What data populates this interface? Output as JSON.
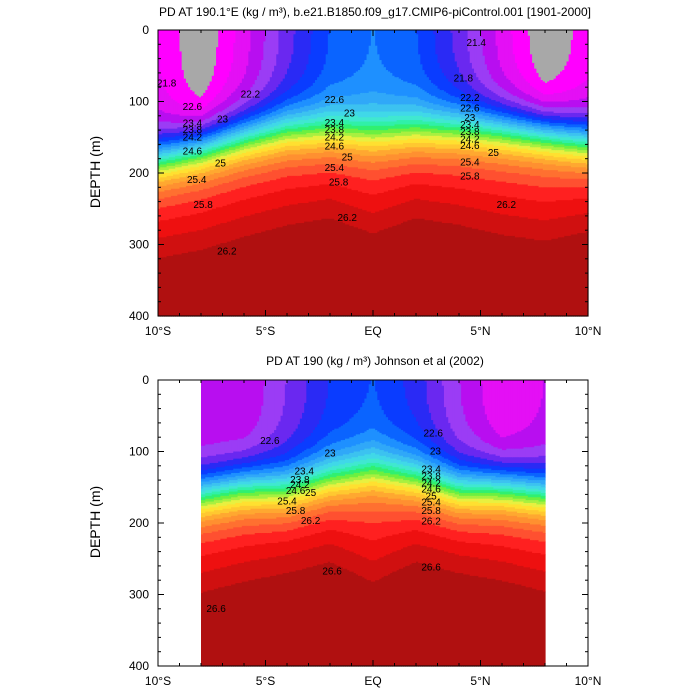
{
  "chart_data": [
    {
      "type": "contour",
      "title": "PD AT 190.1°E (kg / m³), b.e21.B1850.f09_g17.CMIP6-piControl.001 [1901-2000]",
      "ylabel": "DEPTH (m)",
      "xlim": [
        -10,
        10
      ],
      "ylim": [
        400,
        0
      ],
      "data_xlim": [
        -10,
        10
      ],
      "xticks": [
        -10,
        -5,
        0,
        5,
        10
      ],
      "xtick_labels": [
        "10°S",
        "5°S",
        "EQ",
        "5°N",
        "10°N"
      ],
      "yticks": [
        0,
        100,
        200,
        300,
        400
      ],
      "ytick_labels": [
        "0",
        "100",
        "200",
        "300",
        "400"
      ],
      "profile": {
        "x": [
          -10,
          -8,
          -6,
          -4,
          -2,
          0,
          2,
          4,
          6,
          8,
          10
        ],
        "top_density": [
          21.6,
          21.2,
          21.7,
          22.3,
          22.8,
          23.0,
          22.8,
          22.3,
          21.7,
          21.2,
          21.5
        ],
        "thermocline_depth": [
          180,
          165,
          150,
          140,
          140,
          146,
          140,
          138,
          140,
          145,
          155
        ],
        "deep_262_depth": [
          270,
          260,
          240,
          222,
          208,
          236,
          208,
          222,
          240,
          250,
          228
        ]
      },
      "contour_labels": [
        {
          "text": "21.8",
          "x": -9.6,
          "y": 75
        },
        {
          "text": "22.2",
          "x": -5.7,
          "y": 90
        },
        {
          "text": "22.6",
          "x": -8.4,
          "y": 108
        },
        {
          "text": "23",
          "x": -7.0,
          "y": 125
        },
        {
          "text": "23.4",
          "x": -8.4,
          "y": 131
        },
        {
          "text": "23.8",
          "x": -8.4,
          "y": 140
        },
        {
          "text": "24.2",
          "x": -8.4,
          "y": 150
        },
        {
          "text": "24.6",
          "x": -8.4,
          "y": 170
        },
        {
          "text": "25",
          "x": -7.1,
          "y": 187
        },
        {
          "text": "25.4",
          "x": -8.2,
          "y": 210
        },
        {
          "text": "25.8",
          "x": -7.9,
          "y": 245
        },
        {
          "text": "26.2",
          "x": -6.8,
          "y": 310
        },
        {
          "text": "22.6",
          "x": -1.8,
          "y": 98
        },
        {
          "text": "23",
          "x": -1.1,
          "y": 117
        },
        {
          "text": "23.4",
          "x": -1.8,
          "y": 130
        },
        {
          "text": "23.8",
          "x": -1.8,
          "y": 140
        },
        {
          "text": "24.2",
          "x": -1.8,
          "y": 150
        },
        {
          "text": "24.6",
          "x": -1.8,
          "y": 163
        },
        {
          "text": "25",
          "x": -1.2,
          "y": 178
        },
        {
          "text": "25.4",
          "x": -1.8,
          "y": 193
        },
        {
          "text": "25.8",
          "x": -1.6,
          "y": 213
        },
        {
          "text": "26.2",
          "x": -1.2,
          "y": 263
        },
        {
          "text": "21.4",
          "x": 4.8,
          "y": 18
        },
        {
          "text": "21.8",
          "x": 4.2,
          "y": 68
        },
        {
          "text": "22.2",
          "x": 4.5,
          "y": 95
        },
        {
          "text": "22.6",
          "x": 4.5,
          "y": 110
        },
        {
          "text": "23",
          "x": 4.5,
          "y": 123
        },
        {
          "text": "23.4",
          "x": 4.5,
          "y": 133
        },
        {
          "text": "23.8",
          "x": 4.5,
          "y": 143
        },
        {
          "text": "24.2",
          "x": 4.5,
          "y": 153
        },
        {
          "text": "24.6",
          "x": 4.5,
          "y": 162
        },
        {
          "text": "25",
          "x": 5.6,
          "y": 172
        },
        {
          "text": "25.4",
          "x": 4.5,
          "y": 185
        },
        {
          "text": "25.8",
          "x": 4.5,
          "y": 205
        },
        {
          "text": "26.2",
          "x": 6.2,
          "y": 245
        }
      ]
    },
    {
      "type": "contour",
      "title": "PD AT 190 (kg / m³) Johnson et al (2002)",
      "ylabel": "DEPTH (m)",
      "xlim": [
        -10,
        10
      ],
      "ylim": [
        400,
        0
      ],
      "data_xlim": [
        -8,
        8
      ],
      "xticks": [
        -10,
        -5,
        0,
        5,
        10
      ],
      "xtick_labels": [
        "10°S",
        "5°S",
        "EQ",
        "5°N",
        "10°N"
      ],
      "yticks": [
        0,
        100,
        200,
        300,
        400
      ],
      "ytick_labels": [
        "0",
        "100",
        "200",
        "300",
        "400"
      ],
      "profile": {
        "x": [
          -8,
          -6,
          -4,
          -2,
          0,
          2,
          4,
          6,
          8
        ],
        "top_density": [
          21.8,
          21.8,
          22.2,
          22.6,
          22.8,
          22.5,
          22.0,
          21.6,
          21.8
        ],
        "thermocline_depth": [
          160,
          150,
          152,
          138,
          128,
          138,
          152,
          150,
          158
        ],
        "deep_262_depth": [
          248,
          230,
          212,
          196,
          240,
          196,
          212,
          228,
          246
        ]
      },
      "contour_labels": [
        {
          "text": "22.6",
          "x": -4.8,
          "y": 85
        },
        {
          "text": "23",
          "x": -2.0,
          "y": 103
        },
        {
          "text": "23.4",
          "x": -3.2,
          "y": 128
        },
        {
          "text": "23.8",
          "x": -3.4,
          "y": 140
        },
        {
          "text": "24.2",
          "x": -3.4,
          "y": 147
        },
        {
          "text": "24.6",
          "x": -3.6,
          "y": 155
        },
        {
          "text": "25",
          "x": -2.9,
          "y": 158
        },
        {
          "text": "25.4",
          "x": -4.0,
          "y": 170
        },
        {
          "text": "25.8",
          "x": -3.6,
          "y": 183
        },
        {
          "text": "26.2",
          "x": -2.9,
          "y": 197
        },
        {
          "text": "26.6",
          "x": -1.9,
          "y": 268
        },
        {
          "text": "26.6",
          "x": -7.3,
          "y": 320
        },
        {
          "text": "22.6",
          "x": 2.8,
          "y": 75
        },
        {
          "text": "23",
          "x": 2.9,
          "y": 100
        },
        {
          "text": "23.4",
          "x": 2.7,
          "y": 125
        },
        {
          "text": "23.8",
          "x": 2.7,
          "y": 135
        },
        {
          "text": "24.2",
          "x": 2.7,
          "y": 145
        },
        {
          "text": "24.6",
          "x": 2.7,
          "y": 153
        },
        {
          "text": "25",
          "x": 2.7,
          "y": 163
        },
        {
          "text": "25.4",
          "x": 2.7,
          "y": 171
        },
        {
          "text": "25.8",
          "x": 2.7,
          "y": 183
        },
        {
          "text": "26.2",
          "x": 2.7,
          "y": 198
        },
        {
          "text": "26.6",
          "x": 2.7,
          "y": 262
        }
      ]
    }
  ],
  "colormap": {
    "levels": [
      21.2,
      21.4,
      21.6,
      21.8,
      22.0,
      22.2,
      22.4,
      22.6,
      22.8,
      23.0,
      23.2,
      23.4,
      23.6,
      23.8,
      24.0,
      24.2,
      24.4,
      24.6,
      24.8,
      25.0,
      25.2,
      25.4,
      25.6,
      25.8,
      26.0,
      26.2,
      26.4,
      26.6,
      26.8
    ],
    "colors": [
      "#6e6e6e",
      "#a8a8a8",
      "#ff00ff",
      "#e40ff5",
      "#b80ef0",
      "#9b3cf5",
      "#6a28f0",
      "#2a2af5",
      "#0a3cff",
      "#0a64ff",
      "#1e90ff",
      "#30a8f8",
      "#3cc2f0",
      "#40d8e8",
      "#40e8d0",
      "#30f0a8",
      "#30f070",
      "#6cf040",
      "#a8f040",
      "#e8f040",
      "#ffe030",
      "#ffc830",
      "#ffa830",
      "#ff9030",
      "#ff7030",
      "#ff5030",
      "#ff2020",
      "#ee1010",
      "#d01010",
      "#b01010"
    ]
  }
}
